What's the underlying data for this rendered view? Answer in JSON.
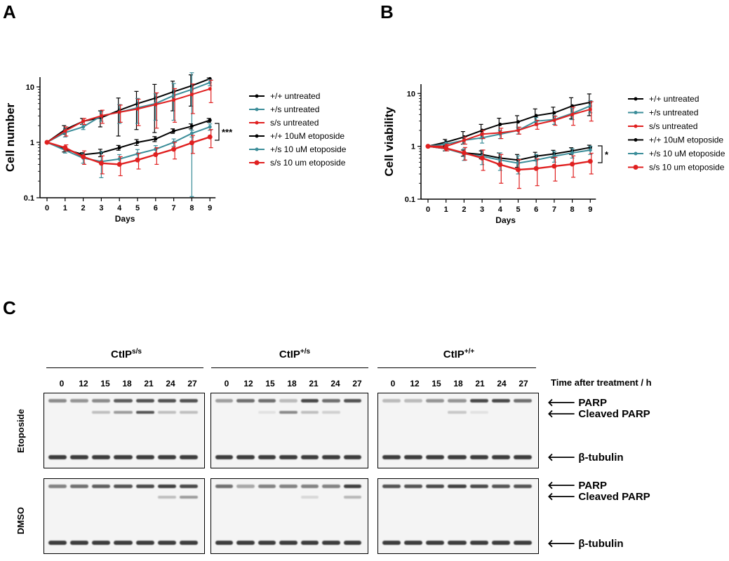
{
  "panels": {
    "a": "A",
    "b": "B",
    "c": "C"
  },
  "chart_data": [
    {
      "type": "line",
      "id": "A",
      "xlabel": "Days",
      "ylabel": "Cell number",
      "yscale": "log",
      "ylim": [
        0.1,
        15
      ],
      "yticks": [
        "10",
        "1",
        "0.1"
      ],
      "x": [
        0,
        1,
        2,
        3,
        4,
        5,
        6,
        7,
        8,
        9
      ],
      "significance": "***",
      "series": [
        {
          "name": "+/+ untreated",
          "color": "#000000",
          "marker": "diamond",
          "values": [
            1,
            1.7,
            2.4,
            2.8,
            3.8,
            5.0,
            6.3,
            8.2,
            10.5,
            14.0
          ],
          "err": [
            0,
            0.3,
            0.3,
            0.9,
            2.5,
            3.3,
            4.8,
            4.5,
            6.0,
            0.5
          ]
        },
        {
          "name": "+/s untreated",
          "color": "#3b8d99",
          "marker": "circle",
          "values": [
            1,
            1.5,
            1.9,
            3.0,
            3.5,
            4.2,
            5.0,
            7.0,
            9.0,
            12.0
          ],
          "err": [
            0,
            0.25,
            0.2,
            0.6,
            1.3,
            2.0,
            2.5,
            4.5,
            9.0,
            1.5
          ]
        },
        {
          "name": "s/s untreated",
          "color": "#e02020",
          "marker": "square",
          "values": [
            1,
            1.6,
            2.4,
            3.0,
            3.5,
            4.0,
            4.8,
            5.8,
            7.3,
            9.2
          ],
          "err": [
            0,
            0.3,
            0.3,
            0.8,
            1.2,
            2.0,
            3.0,
            3.5,
            4.0,
            4.0
          ]
        },
        {
          "name": "+/+ 10uM etoposide",
          "color": "#000000",
          "marker": "diamond",
          "values": [
            1,
            0.75,
            0.6,
            0.65,
            0.8,
            1.0,
            1.15,
            1.6,
            1.95,
            2.5
          ],
          "err": [
            0,
            0.08,
            0.05,
            0.1,
            0.08,
            0.12,
            0.12,
            0.15,
            0.2,
            0.2
          ]
        },
        {
          "name": "+/s 10 uM etoposide",
          "color": "#3b8d99",
          "marker": "circle",
          "values": [
            1,
            0.72,
            0.52,
            0.45,
            0.5,
            0.62,
            0.75,
            1.0,
            1.45,
            1.9
          ],
          "err": [
            0,
            0.08,
            0.1,
            0.22,
            0.1,
            0.12,
            0.12,
            0.15,
            0.2,
            0.25
          ]
        },
        {
          "name": "s/s 10 um etoposide",
          "color": "#e02020",
          "marker": "circle",
          "values": [
            1,
            0.8,
            0.55,
            0.42,
            0.4,
            0.48,
            0.6,
            0.75,
            0.98,
            1.25
          ],
          "err": [
            0,
            0.1,
            0.15,
            0.15,
            0.15,
            0.15,
            0.2,
            0.25,
            0.35,
            0.45
          ]
        }
      ]
    },
    {
      "type": "line",
      "id": "B",
      "xlabel": "Days",
      "ylabel": "Cell viability",
      "yscale": "log",
      "ylim": [
        0.1,
        15
      ],
      "yticks": [
        "10",
        "1",
        "0.1"
      ],
      "x": [
        0,
        1,
        2,
        3,
        4,
        5,
        6,
        7,
        8,
        9
      ],
      "significance": "*",
      "series": [
        {
          "name": "+/+ untreated",
          "color": "#000000",
          "marker": "diamond",
          "values": [
            1,
            1.2,
            1.5,
            2.0,
            2.6,
            2.9,
            3.8,
            4.3,
            5.8,
            6.8
          ],
          "err": [
            0,
            0.15,
            0.4,
            0.6,
            0.8,
            0.9,
            1.3,
            1.2,
            2.5,
            3.0
          ]
        },
        {
          "name": "+/s untreated",
          "color": "#3b8d99",
          "marker": "circle",
          "values": [
            1,
            1.1,
            1.3,
            1.45,
            1.7,
            2.0,
            3.0,
            3.2,
            4.2,
            5.8
          ],
          "err": [
            0,
            0.1,
            0.2,
            0.3,
            0.3,
            0.3,
            0.5,
            0.6,
            1.0,
            1.5
          ]
        },
        {
          "name": "s/s untreated",
          "color": "#e02020",
          "marker": "square",
          "values": [
            1,
            1.0,
            1.3,
            1.7,
            1.8,
            2.0,
            2.6,
            3.1,
            4.0,
            5.0
          ],
          "err": [
            0,
            0.1,
            0.2,
            0.3,
            0.4,
            0.3,
            0.5,
            0.6,
            1.5,
            2.0
          ]
        },
        {
          "name": "+/+ 10uM etoposide",
          "color": "#000000",
          "marker": "diamond",
          "values": [
            1,
            0.9,
            0.75,
            0.7,
            0.6,
            0.55,
            0.65,
            0.72,
            0.82,
            0.95
          ],
          "err": [
            0,
            0.08,
            0.1,
            0.12,
            0.15,
            0.15,
            0.12,
            0.12,
            0.12,
            0.1
          ]
        },
        {
          "name": "+/s 10 uM etoposide",
          "color": "#3b8d99",
          "marker": "circle",
          "values": [
            1,
            0.9,
            0.72,
            0.65,
            0.55,
            0.48,
            0.55,
            0.65,
            0.75,
            0.85
          ],
          "err": [
            0,
            0.08,
            0.18,
            0.2,
            0.2,
            0.18,
            0.15,
            0.15,
            0.15,
            0.15
          ]
        },
        {
          "name": "s/s 10 um etoposide",
          "color": "#e02020",
          "marker": "circle",
          "values": [
            1,
            0.92,
            0.75,
            0.6,
            0.45,
            0.36,
            0.38,
            0.42,
            0.46,
            0.52
          ],
          "err": [
            0,
            0.1,
            0.2,
            0.25,
            0.25,
            0.2,
            0.2,
            0.2,
            0.2,
            0.22
          ]
        }
      ]
    }
  ],
  "blot": {
    "genotypes": [
      {
        "base": "CtIP",
        "sup": "s/s"
      },
      {
        "base": "CtIP",
        "sup": "+/s"
      },
      {
        "base": "CtIP",
        "sup": "+/+"
      }
    ],
    "lanes": [
      "0",
      "12",
      "15",
      "18",
      "21",
      "24",
      "27"
    ],
    "time_label": "Time after treatment / h",
    "conditions": [
      "Etoposide",
      "DMSO"
    ],
    "band_labels": {
      "parp": "PARP",
      "cleaved": "Cleaved PARP",
      "tubulin": "β-tubulin"
    }
  }
}
